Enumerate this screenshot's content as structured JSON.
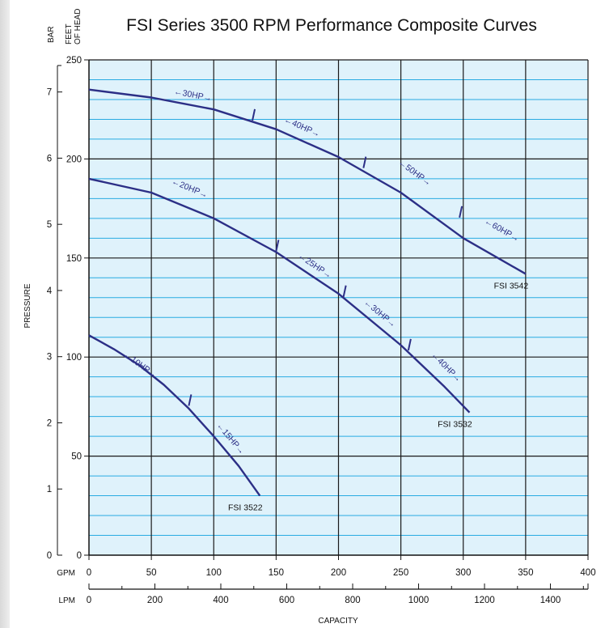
{
  "chart_data": {
    "type": "line",
    "title": "FSI Series 3500 RPM Performance Composite Curves",
    "colors": {
      "plot_bg": "#dff2fb",
      "minor_grid": "#29abe2",
      "major_grid": "#1a1a1a",
      "curve": "#2c2f86"
    },
    "y_left_label": "BAR",
    "y_right_label_line1": "FEET",
    "y_right_label_line2": "OF HEAD",
    "ylabel": "PRESSURE",
    "xlabel": "CAPACITY",
    "x_primary_unit": "GPM",
    "x_secondary_unit": "LPM",
    "xlim": [
      0,
      400
    ],
    "ylim": [
      0,
      250
    ],
    "grid": true,
    "x_ticks_gpm": [
      0,
      50,
      100,
      150,
      200,
      250,
      300,
      350,
      400
    ],
    "x_ticks_lpm": [
      0,
      200,
      400,
      600,
      800,
      1000,
      1200,
      1400
    ],
    "y_ticks_feet": [
      0,
      50,
      100,
      150,
      200,
      250
    ],
    "y_ticks_bar": [
      0,
      1,
      2,
      3,
      4,
      5,
      6,
      7
    ],
    "series": [
      {
        "name": "FSI 3522",
        "x": [
          0,
          20,
          40,
          60,
          80,
          100,
          120,
          137
        ],
        "y": [
          111,
          104,
          96,
          86,
          74,
          60,
          45,
          30
        ],
        "hp_segments": [
          {
            "label": "10HP",
            "x": 40,
            "y": 95
          },
          {
            "label": "15HP",
            "x": 112,
            "y": 58
          }
        ],
        "hp_boundaries": [
          {
            "x": 80,
            "y": 75
          }
        ]
      },
      {
        "name": "FSI 3532",
        "x": [
          0,
          50,
          100,
          150,
          200,
          250,
          285,
          305
        ],
        "y": [
          190,
          183,
          170,
          153,
          132,
          106,
          85,
          72
        ],
        "hp_segments": [
          {
            "label": "20HP",
            "x": 80,
            "y": 184
          },
          {
            "label": "25HP",
            "x": 180,
            "y": 145
          },
          {
            "label": "30HP",
            "x": 232,
            "y": 121
          },
          {
            "label": "40HP",
            "x": 285,
            "y": 94
          }
        ],
        "hp_boundaries": [
          {
            "x": 150,
            "y": 153
          },
          {
            "x": 204,
            "y": 130
          },
          {
            "x": 256,
            "y": 103
          }
        ]
      },
      {
        "name": "FSI 3542",
        "x": [
          0,
          50,
          100,
          150,
          200,
          250,
          300,
          350
        ],
        "y": [
          235,
          231,
          225,
          215,
          201,
          183,
          160,
          142
        ],
        "hp_segments": [
          {
            "label": "30HP",
            "x": 83,
            "y": 231
          },
          {
            "label": "40HP",
            "x": 170,
            "y": 215
          },
          {
            "label": "50HP",
            "x": 260,
            "y": 192
          },
          {
            "label": "60HP",
            "x": 330,
            "y": 163
          }
        ],
        "hp_boundaries": [
          {
            "x": 131,
            "y": 219
          },
          {
            "x": 220,
            "y": 195
          },
          {
            "x": 297,
            "y": 170
          }
        ]
      }
    ]
  }
}
